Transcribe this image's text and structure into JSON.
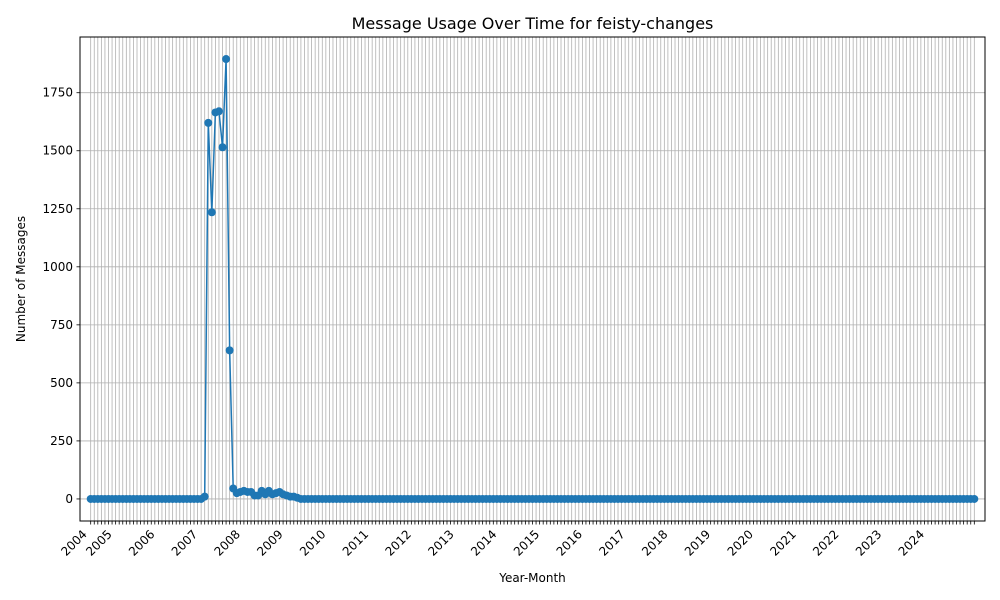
{
  "chart_data": {
    "type": "line",
    "title": "Message Usage Over Time for feisty-changes",
    "xlabel": "Year-Month",
    "ylabel": "Number of Messages",
    "x_start": "2004-06",
    "x_end": "2025-02",
    "xlim": [
      "2004-03",
      "2025-05"
    ],
    "ylim": [
      -95,
      1990
    ],
    "year_ticks": [
      "2004",
      "2005",
      "2006",
      "2007",
      "2008",
      "2009",
      "2010",
      "2011",
      "2012",
      "2013",
      "2014",
      "2015",
      "2016",
      "2017",
      "2018",
      "2019",
      "2020",
      "2021",
      "2022",
      "2023",
      "2024"
    ],
    "yticks": [
      0,
      250,
      500,
      750,
      1000,
      1250,
      1500,
      1750
    ],
    "grid": true,
    "marker": "circle",
    "color": "#1f77b4",
    "series": [
      {
        "points": [
          [
            "2007-02",
            10
          ],
          [
            "2007-03",
            1620
          ],
          [
            "2007-04",
            1235
          ],
          [
            "2007-05",
            1665
          ],
          [
            "2007-06",
            1670
          ],
          [
            "2007-07",
            1515
          ],
          [
            "2007-08",
            1895
          ],
          [
            "2007-09",
            640
          ],
          [
            "2007-10",
            45
          ],
          [
            "2007-11",
            25
          ],
          [
            "2007-12",
            30
          ],
          [
            "2008-01",
            35
          ],
          [
            "2008-02",
            30
          ],
          [
            "2008-03",
            30
          ],
          [
            "2008-04",
            15
          ],
          [
            "2008-05",
            15
          ],
          [
            "2008-06",
            35
          ],
          [
            "2008-07",
            20
          ],
          [
            "2008-08",
            35
          ],
          [
            "2008-09",
            20
          ],
          [
            "2008-10",
            25
          ],
          [
            "2008-11",
            30
          ],
          [
            "2008-12",
            20
          ],
          [
            "2009-01",
            15
          ],
          [
            "2009-02",
            10
          ],
          [
            "2009-03",
            10
          ],
          [
            "2009-04",
            5
          ]
        ],
        "default_value": 0
      }
    ]
  }
}
